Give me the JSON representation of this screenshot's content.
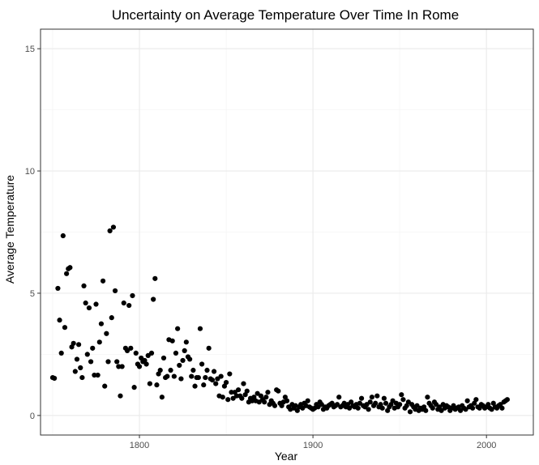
{
  "chart_data": {
    "type": "scatter",
    "title": "Uncertainty on Average Temperature Over Time In Rome",
    "xlabel": "Year",
    "ylabel": "Average Temperature",
    "xlim": [
      1743,
      2027
    ],
    "ylim": [
      -0.8,
      15.8
    ],
    "x_ticks": [
      1800,
      1900,
      2000
    ],
    "x_tick_labels": [
      "1800",
      "1900",
      "2000"
    ],
    "y_ticks": [
      0,
      5,
      10,
      15
    ],
    "y_tick_labels": [
      "0",
      "5",
      "10",
      "15"
    ],
    "x_minor": [
      1750,
      1850,
      1950
    ],
    "y_minor": [
      2.5,
      7.5,
      12.5
    ],
    "grid": true,
    "colors": {
      "point": "#000000",
      "panel_border": "#333333",
      "grid_major": "#ebebeb",
      "grid_minor": "#f5f5f5",
      "background": "#ffffff"
    },
    "series": [
      {
        "name": "Uncertainty",
        "points": [
          [
            1750,
            1.55
          ],
          [
            1751,
            1.52
          ],
          [
            1753,
            5.2
          ],
          [
            1754,
            3.9
          ],
          [
            1755,
            2.55
          ],
          [
            1756,
            7.35
          ],
          [
            1757,
            3.6
          ],
          [
            1758,
            5.8
          ],
          [
            1759,
            6.0
          ],
          [
            1760,
            6.05
          ],
          [
            1761,
            2.8
          ],
          [
            1762,
            2.95
          ],
          [
            1763,
            1.8
          ],
          [
            1764,
            2.3
          ],
          [
            1765,
            2.9
          ],
          [
            1766,
            1.95
          ],
          [
            1767,
            1.55
          ],
          [
            1768,
            5.3
          ],
          [
            1769,
            4.6
          ],
          [
            1770,
            2.5
          ],
          [
            1771,
            4.4
          ],
          [
            1772,
            2.2
          ],
          [
            1773,
            2.75
          ],
          [
            1774,
            1.65
          ],
          [
            1775,
            4.55
          ],
          [
            1776,
            1.65
          ],
          [
            1777,
            3.0
          ],
          [
            1778,
            3.75
          ],
          [
            1779,
            5.5
          ],
          [
            1780,
            1.2
          ],
          [
            1781,
            3.35
          ],
          [
            1782,
            2.2
          ],
          [
            1783,
            7.55
          ],
          [
            1784,
            4.0
          ],
          [
            1785,
            7.7
          ],
          [
            1786,
            5.1
          ],
          [
            1787,
            2.2
          ],
          [
            1788,
            2.0
          ],
          [
            1789,
            0.8
          ],
          [
            1790,
            2.0
          ],
          [
            1791,
            4.6
          ],
          [
            1792,
            2.75
          ],
          [
            1793,
            2.65
          ],
          [
            1794,
            4.5
          ],
          [
            1795,
            2.75
          ],
          [
            1796,
            4.9
          ],
          [
            1797,
            1.15
          ],
          [
            1798,
            2.55
          ],
          [
            1799,
            2.1
          ],
          [
            1800,
            2.0
          ],
          [
            1801,
            2.35
          ],
          [
            1802,
            2.2
          ],
          [
            1803,
            2.25
          ],
          [
            1804,
            2.1
          ],
          [
            1805,
            2.45
          ],
          [
            1806,
            1.3
          ],
          [
            1807,
            2.55
          ],
          [
            1808,
            4.75
          ],
          [
            1809,
            5.6
          ],
          [
            1810,
            1.25
          ],
          [
            1811,
            1.7
          ],
          [
            1812,
            1.85
          ],
          [
            1813,
            0.75
          ],
          [
            1814,
            2.35
          ],
          [
            1815,
            1.55
          ],
          [
            1816,
            1.6
          ],
          [
            1817,
            3.1
          ],
          [
            1818,
            1.85
          ],
          [
            1819,
            3.05
          ],
          [
            1820,
            1.6
          ],
          [
            1821,
            2.55
          ],
          [
            1822,
            3.55
          ],
          [
            1823,
            2.05
          ],
          [
            1824,
            1.5
          ],
          [
            1825,
            2.25
          ],
          [
            1826,
            2.65
          ],
          [
            1827,
            3.0
          ],
          [
            1828,
            2.4
          ],
          [
            1829,
            2.3
          ],
          [
            1830,
            1.6
          ],
          [
            1831,
            1.85
          ],
          [
            1832,
            1.2
          ],
          [
            1833,
            1.55
          ],
          [
            1834,
            1.55
          ],
          [
            1835,
            3.55
          ],
          [
            1836,
            2.1
          ],
          [
            1837,
            1.25
          ],
          [
            1838,
            1.55
          ],
          [
            1839,
            1.85
          ],
          [
            1840,
            2.75
          ],
          [
            1841,
            1.5
          ],
          [
            1842,
            1.45
          ],
          [
            1843,
            1.8
          ],
          [
            1844,
            1.3
          ],
          [
            1845,
            1.5
          ],
          [
            1846,
            0.8
          ],
          [
            1847,
            1.6
          ],
          [
            1848,
            0.75
          ],
          [
            1849,
            1.2
          ],
          [
            1850,
            1.35
          ],
          [
            1851,
            0.65
          ],
          [
            1852,
            1.7
          ],
          [
            1853,
            0.95
          ],
          [
            1854,
            0.7
          ],
          [
            1855,
            0.95
          ],
          [
            1856,
            0.8
          ],
          [
            1857,
            1.05
          ],
          [
            1858,
            0.8
          ],
          [
            1859,
            0.7
          ],
          [
            1860,
            1.3
          ],
          [
            1861,
            0.85
          ],
          [
            1862,
            1.0
          ],
          [
            1863,
            0.55
          ],
          [
            1864,
            0.7
          ],
          [
            1865,
            0.6
          ],
          [
            1866,
            0.75
          ],
          [
            1867,
            0.6
          ],
          [
            1868,
            0.9
          ],
          [
            1869,
            0.55
          ],
          [
            1870,
            0.8
          ],
          [
            1871,
            0.65
          ],
          [
            1872,
            0.55
          ],
          [
            1873,
            0.75
          ],
          [
            1874,
            0.95
          ],
          [
            1875,
            0.45
          ],
          [
            1876,
            0.6
          ],
          [
            1877,
            0.5
          ],
          [
            1878,
            0.4
          ],
          [
            1879,
            1.05
          ],
          [
            1880,
            1.0
          ],
          [
            1881,
            0.5
          ],
          [
            1882,
            0.4
          ],
          [
            1883,
            0.55
          ],
          [
            1884,
            0.75
          ],
          [
            1885,
            0.6
          ],
          [
            1886,
            0.35
          ],
          [
            1887,
            0.25
          ],
          [
            1888,
            0.45
          ],
          [
            1889,
            0.3
          ],
          [
            1890,
            0.4
          ],
          [
            1891,
            0.2
          ],
          [
            1892,
            0.35
          ],
          [
            1893,
            0.45
          ],
          [
            1894,
            0.3
          ],
          [
            1895,
            0.5
          ],
          [
            1896,
            0.4
          ],
          [
            1897,
            0.6
          ],
          [
            1898,
            0.35
          ],
          [
            1899,
            0.3
          ],
          [
            1900,
            0.25
          ],
          [
            1901,
            0.3
          ],
          [
            1902,
            0.45
          ],
          [
            1903,
            0.35
          ],
          [
            1904,
            0.55
          ],
          [
            1905,
            0.45
          ],
          [
            1906,
            0.25
          ],
          [
            1907,
            0.35
          ],
          [
            1908,
            0.3
          ],
          [
            1909,
            0.4
          ],
          [
            1910,
            0.45
          ],
          [
            1911,
            0.5
          ],
          [
            1912,
            0.35
          ],
          [
            1913,
            0.4
          ],
          [
            1914,
            0.45
          ],
          [
            1915,
            0.75
          ],
          [
            1916,
            0.35
          ],
          [
            1917,
            0.4
          ],
          [
            1918,
            0.5
          ],
          [
            1919,
            0.35
          ],
          [
            1920,
            0.45
          ],
          [
            1921,
            0.3
          ],
          [
            1922,
            0.55
          ],
          [
            1923,
            0.4
          ],
          [
            1924,
            0.35
          ],
          [
            1925,
            0.45
          ],
          [
            1926,
            0.3
          ],
          [
            1927,
            0.5
          ],
          [
            1928,
            0.7
          ],
          [
            1929,
            0.4
          ],
          [
            1930,
            0.35
          ],
          [
            1931,
            0.45
          ],
          [
            1932,
            0.25
          ],
          [
            1933,
            0.55
          ],
          [
            1934,
            0.75
          ],
          [
            1935,
            0.4
          ],
          [
            1936,
            0.5
          ],
          [
            1937,
            0.8
          ],
          [
            1938,
            0.35
          ],
          [
            1939,
            0.45
          ],
          [
            1940,
            0.3
          ],
          [
            1941,
            0.7
          ],
          [
            1942,
            0.5
          ],
          [
            1943,
            0.2
          ],
          [
            1944,
            0.35
          ],
          [
            1945,
            0.45
          ],
          [
            1946,
            0.6
          ],
          [
            1947,
            0.3
          ],
          [
            1948,
            0.5
          ],
          [
            1949,
            0.35
          ],
          [
            1950,
            0.45
          ],
          [
            1951,
            0.85
          ],
          [
            1952,
            0.65
          ],
          [
            1953,
            0.3
          ],
          [
            1954,
            0.4
          ],
          [
            1955,
            0.55
          ],
          [
            1956,
            0.15
          ],
          [
            1957,
            0.45
          ],
          [
            1958,
            0.35
          ],
          [
            1959,
            0.25
          ],
          [
            1960,
            0.4
          ],
          [
            1961,
            0.2
          ],
          [
            1962,
            0.3
          ],
          [
            1963,
            0.25
          ],
          [
            1964,
            0.35
          ],
          [
            1965,
            0.2
          ],
          [
            1966,
            0.75
          ],
          [
            1967,
            0.5
          ],
          [
            1968,
            0.4
          ],
          [
            1969,
            0.3
          ],
          [
            1970,
            0.55
          ],
          [
            1971,
            0.45
          ],
          [
            1972,
            0.25
          ],
          [
            1973,
            0.35
          ],
          [
            1974,
            0.2
          ],
          [
            1975,
            0.45
          ],
          [
            1976,
            0.3
          ],
          [
            1977,
            0.4
          ],
          [
            1978,
            0.35
          ],
          [
            1979,
            0.2
          ],
          [
            1980,
            0.3
          ],
          [
            1981,
            0.4
          ],
          [
            1982,
            0.25
          ],
          [
            1983,
            0.3
          ],
          [
            1984,
            0.35
          ],
          [
            1985,
            0.2
          ],
          [
            1986,
            0.4
          ],
          [
            1987,
            0.3
          ],
          [
            1988,
            0.25
          ],
          [
            1989,
            0.6
          ],
          [
            1990,
            0.35
          ],
          [
            1991,
            0.4
          ],
          [
            1992,
            0.3
          ],
          [
            1993,
            0.5
          ],
          [
            1994,
            0.65
          ],
          [
            1995,
            0.35
          ],
          [
            1996,
            0.3
          ],
          [
            1997,
            0.45
          ],
          [
            1998,
            0.4
          ],
          [
            1999,
            0.3
          ],
          [
            2000,
            0.35
          ],
          [
            2001,
            0.45
          ],
          [
            2002,
            0.3
          ],
          [
            2003,
            0.25
          ],
          [
            2004,
            0.5
          ],
          [
            2005,
            0.35
          ],
          [
            2006,
            0.3
          ],
          [
            2007,
            0.4
          ],
          [
            2008,
            0.45
          ],
          [
            2009,
            0.3
          ],
          [
            2010,
            0.55
          ],
          [
            2011,
            0.6
          ],
          [
            2012,
            0.65
          ]
        ]
      }
    ]
  }
}
